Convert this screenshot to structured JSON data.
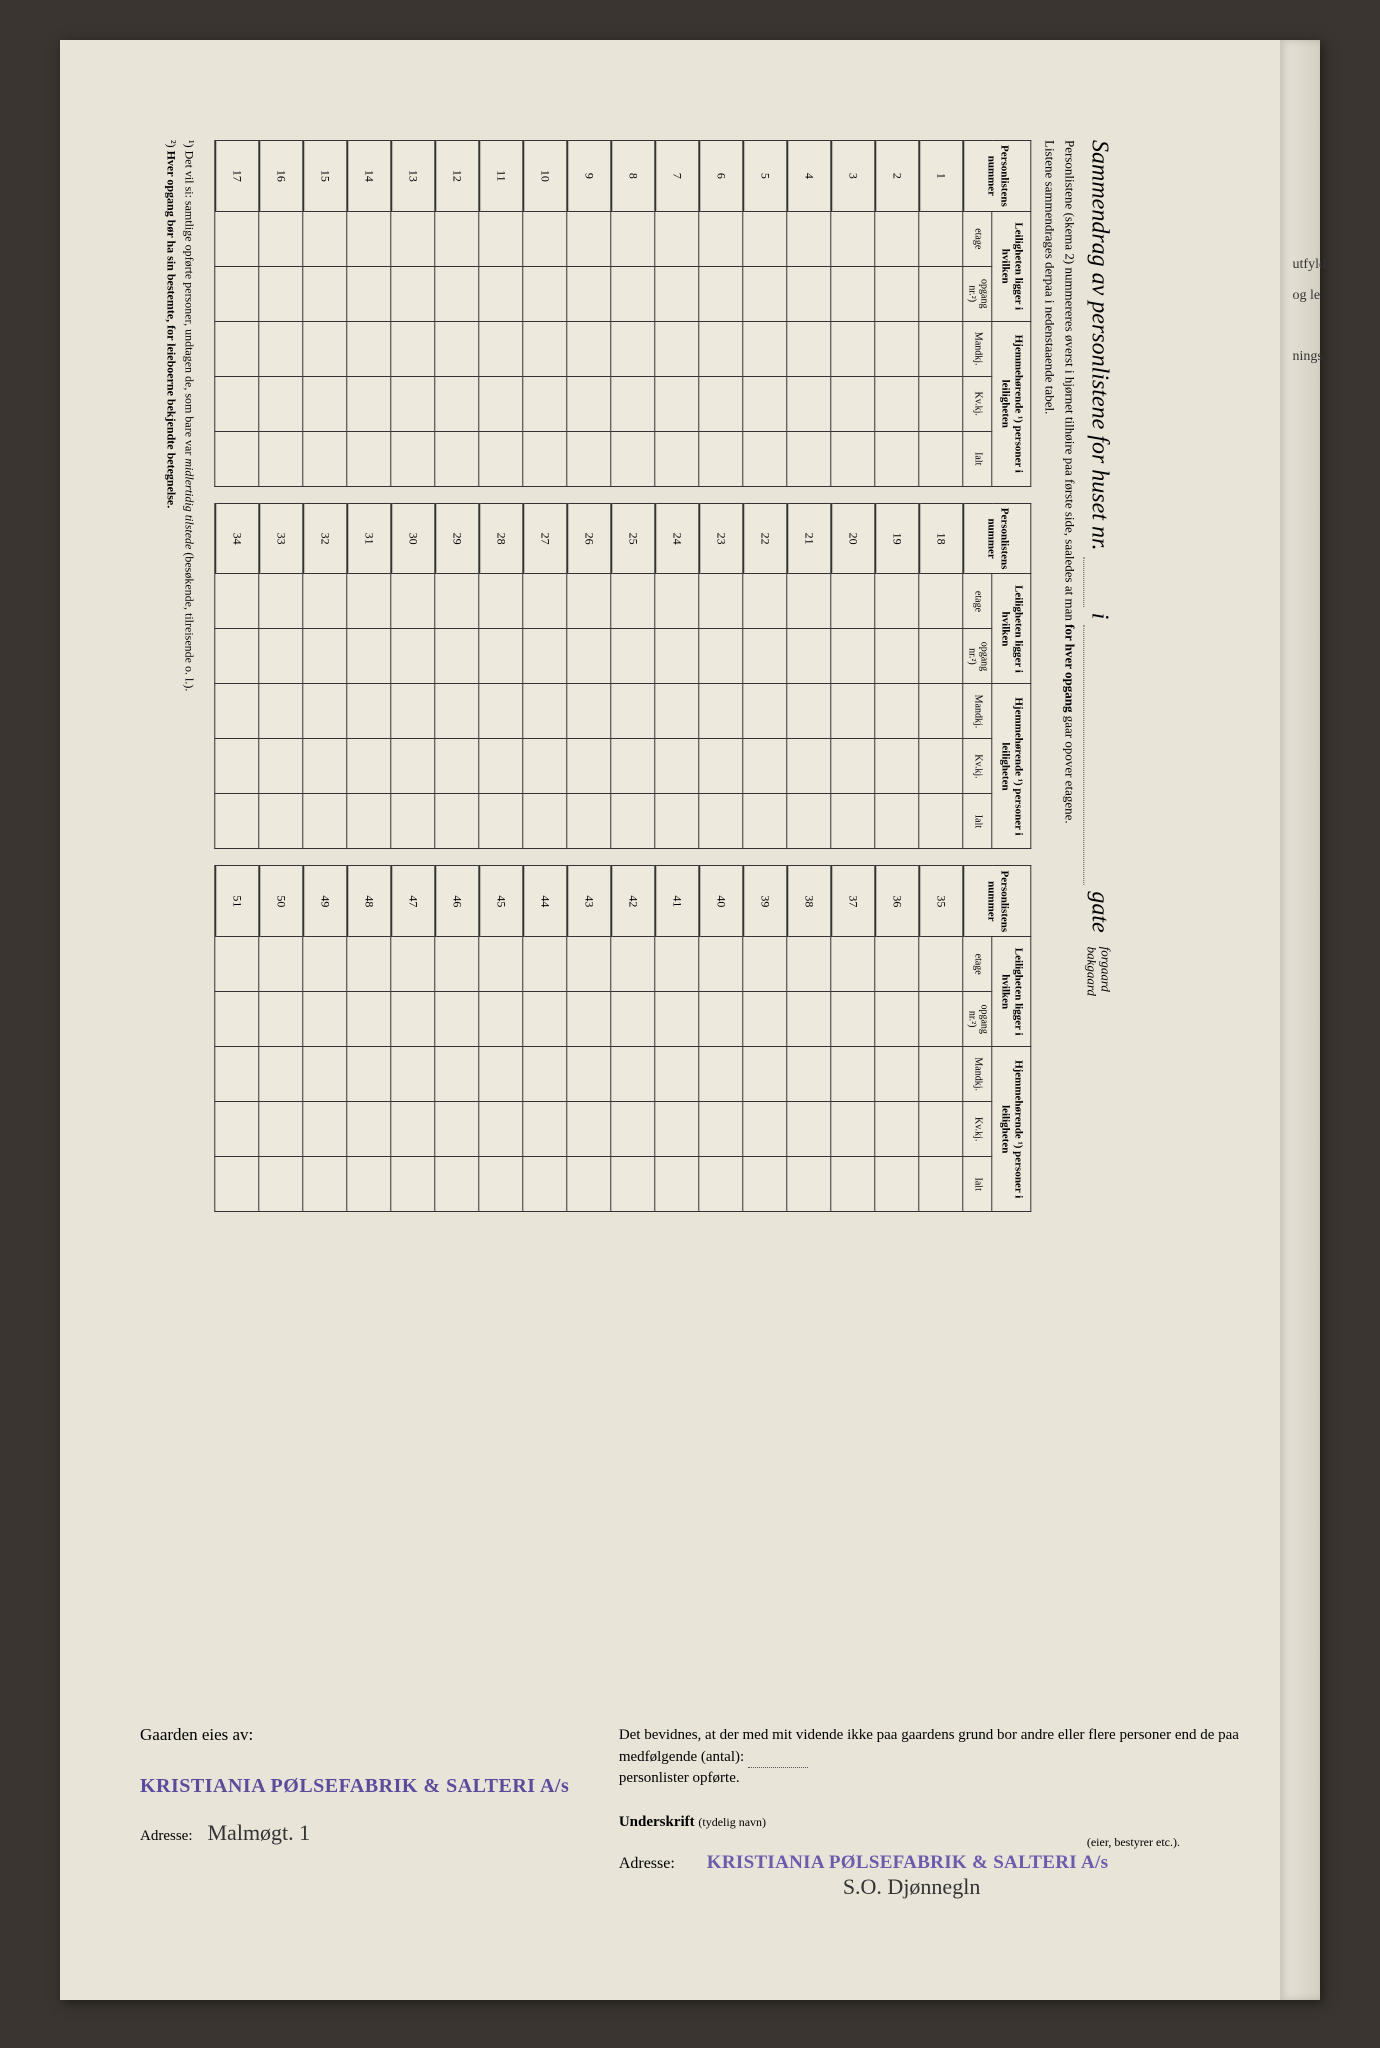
{
  "header": {
    "title_prefix": "Sammendrag av personlistene for huset nr.",
    "title_mid": "i",
    "gate_label": "gate",
    "gate_sub_top": "forgaard",
    "gate_sub_bottom": "bakgaard",
    "line1_prefix": "Personlistene (skema 2) nummereres øverst i hjørnet tilhøire paa første side, saaledes at man ",
    "line1_bold": "for hver opgang",
    "line1_suffix": " gaar opover etagene.",
    "line2": "Listene sammendrages derpaa i nedenstaaende tabel."
  },
  "table": {
    "col_personlistens": "Personlistens nummer",
    "col_leiligheten": "Leiligheten ligger i hvilken",
    "col_hjemme": "Hjemmehørende ¹) personer i leiligheten",
    "sub_etage": "etage",
    "sub_opgang": "opgang nr.²)",
    "sub_mandkj": "Mandkj.",
    "sub_kvkj": "Kv.kj.",
    "sub_ialt": "Ialt",
    "block1_start": 1,
    "block1_end": 17,
    "block2_start": 18,
    "block2_end": 34,
    "block3_start": 35,
    "block3_end": 51
  },
  "footnotes": {
    "fn1_marker": "¹)",
    "fn1_text_pre": "Det vil si: samtlige opførte personer, undtagen de, som bare var ",
    "fn1_em": "midlertidig tilstede",
    "fn1_text_post": " (besøkende, tilreisende o. l.).",
    "fn2_marker": "²)",
    "fn2_text": "Hver opgang bør ha sin bestemte, for leieboerne bekjendte betegnelse."
  },
  "bottom": {
    "owner_label": "Gaarden eies av:",
    "stamp_text": "KRISTIANIA PØLSEFABRIK & SALTERI A/s",
    "adresse_label": "Adresse:",
    "adresse_value": "Malmøgt. 1",
    "affidavit_pre": "Det bevidnes, at der med mit vidende ikke paa gaardens grund bor andre eller flere personer end de paa medfølgende (antal): ",
    "affidavit_post": "personlister opførte.",
    "underskrift_label": "Underskrift",
    "underskrift_hint": "(tydelig navn)",
    "eier_label": "(eier, bestyrer etc.).",
    "signature_text": "S.O. Djønnegln"
  },
  "edge": {
    "t1": "utfyld",
    "t2": "og le",
    "t3": "nings"
  },
  "colors": {
    "paper": "#e8e4d8",
    "ink": "#222222",
    "stamp": "#5b4b9e",
    "border": "#333333"
  }
}
